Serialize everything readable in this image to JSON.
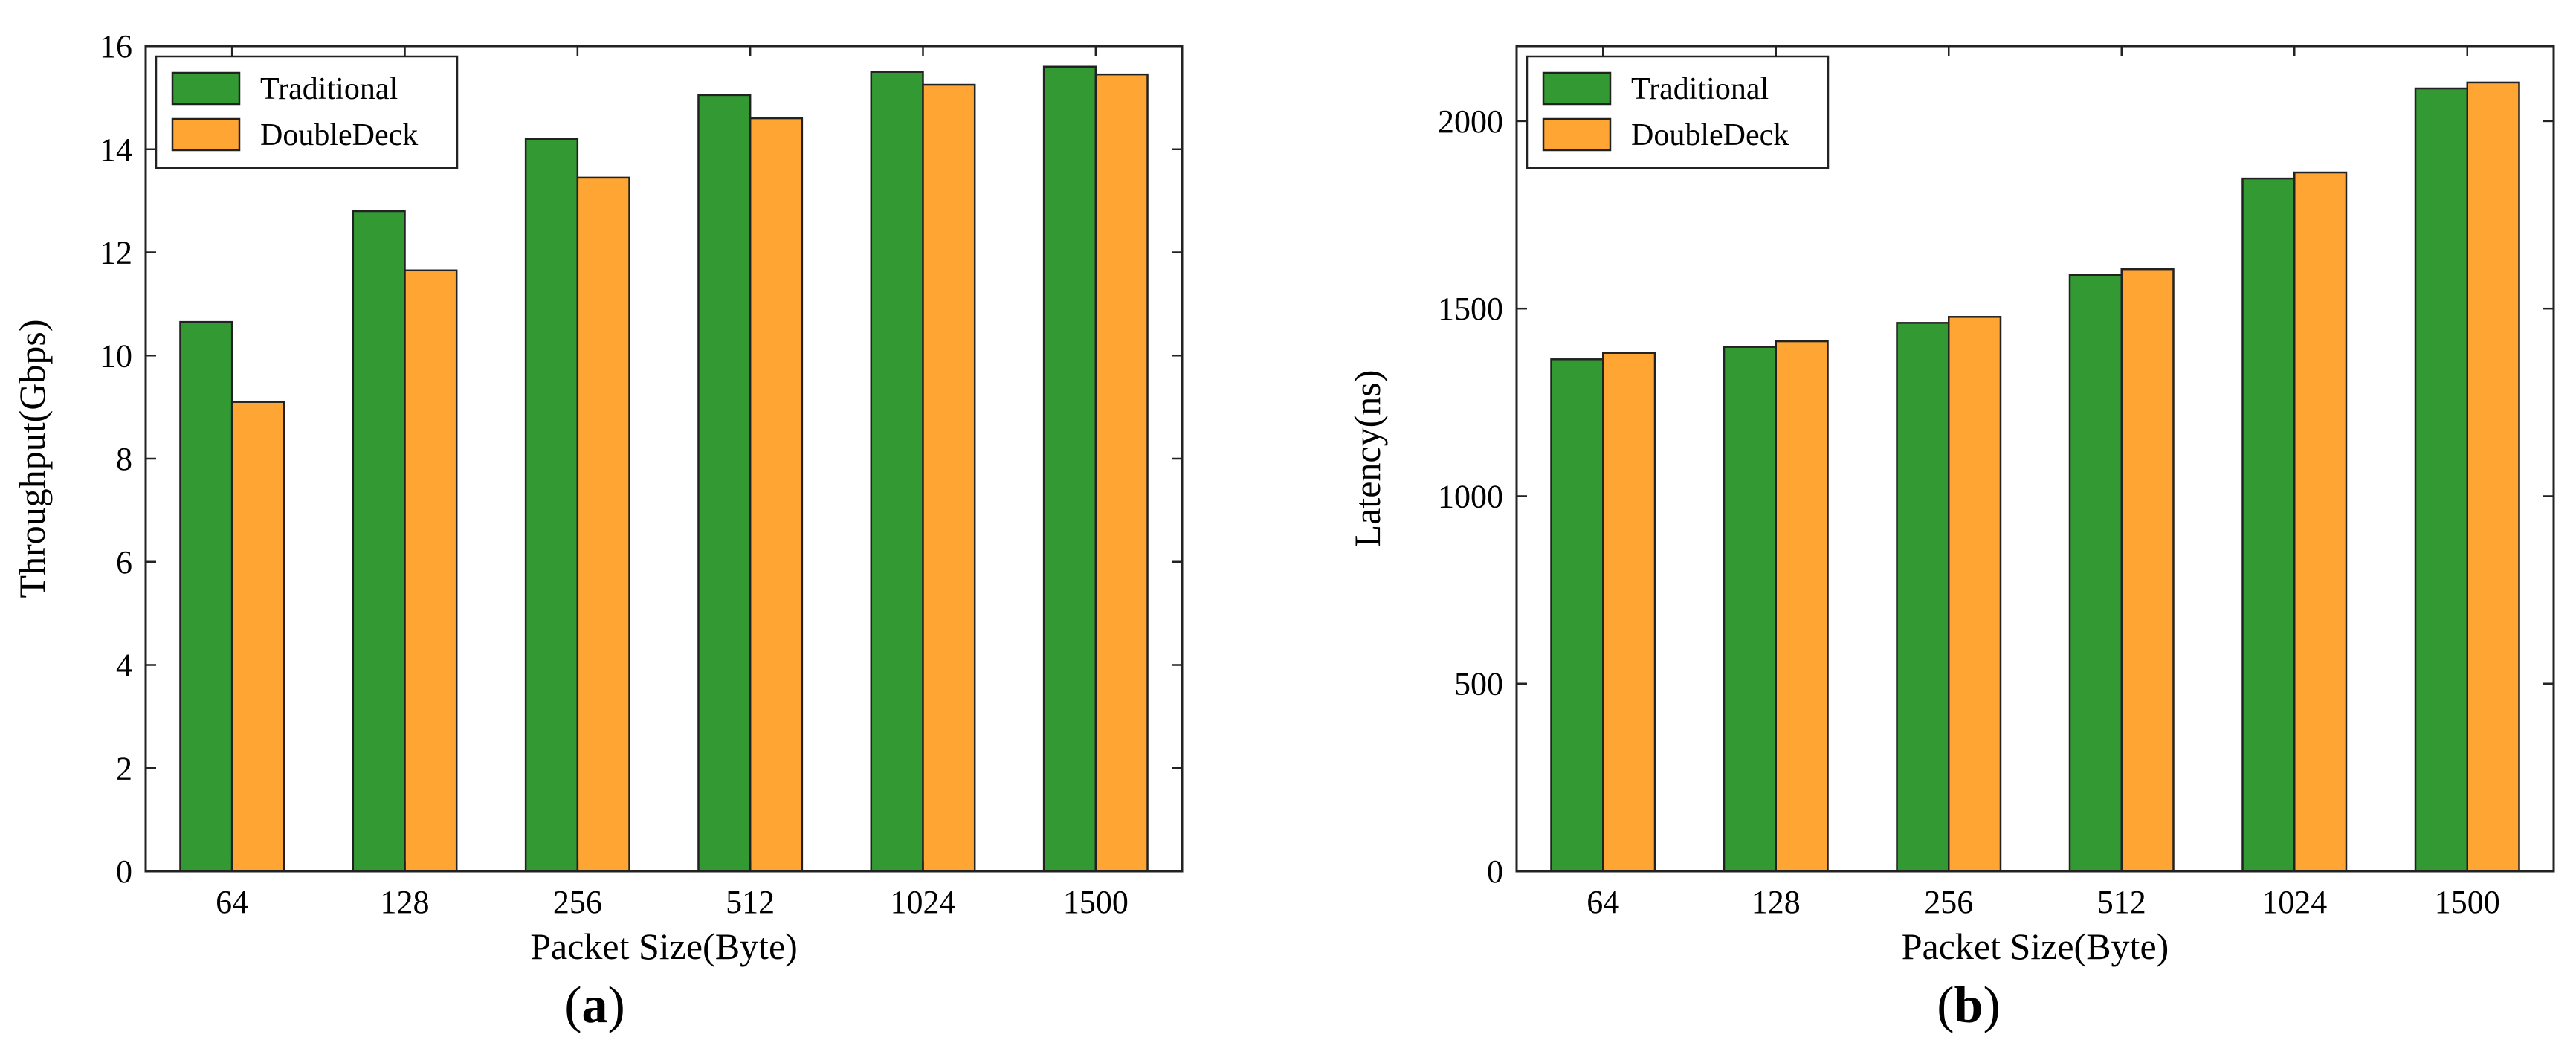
{
  "chart_data": [
    {
      "type": "bar",
      "panel_label": "a",
      "categories": [
        "64",
        "128",
        "256",
        "512",
        "1024",
        "1500"
      ],
      "series": [
        {
          "name": "Traditional",
          "values": [
            10.65,
            12.8,
            14.2,
            15.05,
            15.5,
            15.6
          ]
        },
        {
          "name": "DoubleDeck",
          "values": [
            9.1,
            11.65,
            13.45,
            14.6,
            15.25,
            15.45
          ]
        }
      ],
      "title": "",
      "xlabel": "Packet Size(Byte)",
      "ylabel": "Throughput(Gbps)",
      "ylim": [
        0,
        16
      ],
      "yticks": [
        0,
        2,
        4,
        6,
        8,
        10,
        12,
        14,
        16
      ],
      "legend": "top-left",
      "grid": false
    },
    {
      "type": "bar",
      "panel_label": "b",
      "categories": [
        "64",
        "128",
        "256",
        "512",
        "1024",
        "1500"
      ],
      "series": [
        {
          "name": "Traditional",
          "values": [
            1365,
            1398,
            1462,
            1590,
            1847,
            2087
          ]
        },
        {
          "name": "DoubleDeck",
          "values": [
            1382,
            1413,
            1478,
            1605,
            1863,
            2103
          ]
        }
      ],
      "title": "",
      "xlabel": "Packet Size(Byte)",
      "ylabel": "Latency(ns)",
      "ylim": [
        0,
        2200
      ],
      "yticks": [
        0,
        500,
        1000,
        1500,
        2000
      ],
      "legend": "top-left",
      "grid": false
    }
  ],
  "colors": {
    "Traditional": "#339933",
    "DoubleDeck": "#ffa534",
    "edge": "#222222"
  }
}
